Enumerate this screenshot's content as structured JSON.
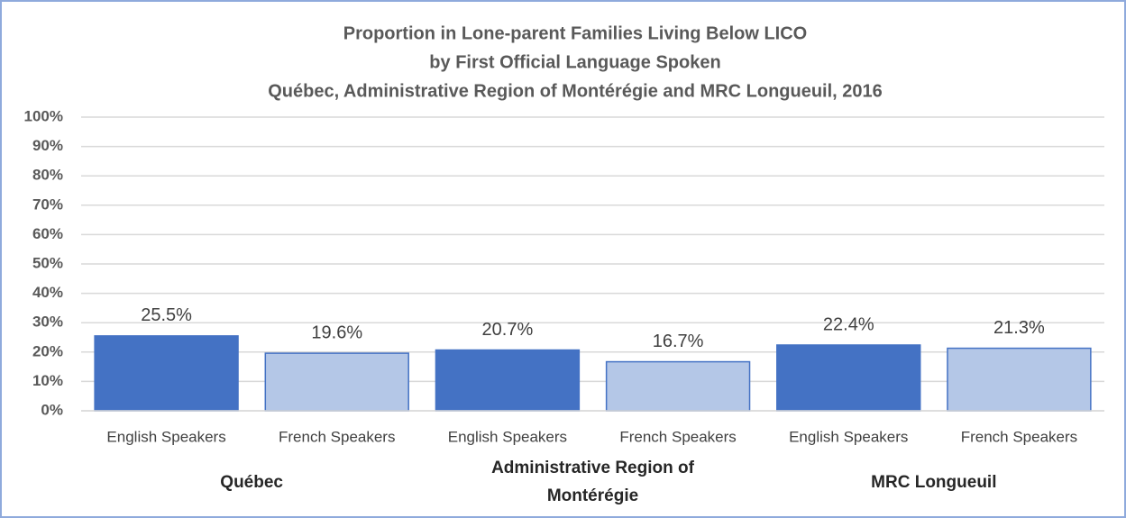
{
  "chart_data": {
    "type": "bar",
    "title": [
      "Proportion in Lone-parent Families Living Below LICO",
      "by First Official Language Spoken",
      "Québec, Administrative Region of Montérégie and MRC Longueuil, 2016"
    ],
    "categories": [
      "Québec",
      "Administrative Region of Montérégie",
      "MRC Longueuil"
    ],
    "series": [
      {
        "name": "English Speakers",
        "color": "#4472c4",
        "values": [
          25.5,
          20.7,
          22.4
        ],
        "value_labels": [
          "25.5%",
          "20.7%",
          "22.4%"
        ]
      },
      {
        "name": "French Speakers",
        "color": "#b4c7e7",
        "values": [
          19.6,
          16.7,
          21.3
        ],
        "value_labels": [
          "19.6%",
          "16.7%",
          "21.3%"
        ]
      }
    ],
    "ylim": [
      0,
      100
    ],
    "yticks": [
      {
        "value": 0,
        "label": "0%"
      },
      {
        "value": 10,
        "label": "10%"
      },
      {
        "value": 20,
        "label": "20%"
      },
      {
        "value": 30,
        "label": "30%"
      },
      {
        "value": 40,
        "label": "40%"
      },
      {
        "value": 50,
        "label": "50%"
      },
      {
        "value": 60,
        "label": "60%"
      },
      {
        "value": 70,
        "label": "70%"
      },
      {
        "value": 80,
        "label": "80%"
      },
      {
        "value": 90,
        "label": "90%"
      },
      {
        "value": 100,
        "label": "100%"
      }
    ],
    "grid": true
  }
}
